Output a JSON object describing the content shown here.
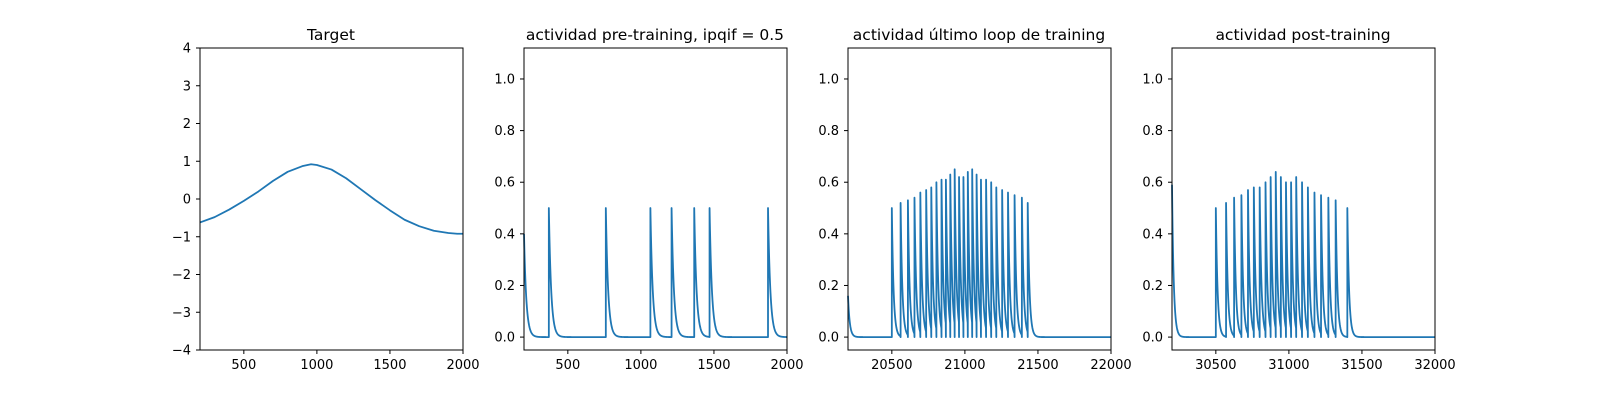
{
  "colors": {
    "series": "#1f77b4",
    "axes": "#000000",
    "background": "#ffffff"
  },
  "chart_data": [
    {
      "type": "line",
      "title": "Target",
      "xlabel": "",
      "ylabel": "",
      "xlim": [
        200,
        2000
      ],
      "ylim": [
        -4,
        4
      ],
      "xticks": [
        500,
        1000,
        1500,
        2000
      ],
      "yticks": [
        -4,
        -3,
        -2,
        -1,
        0,
        1,
        2,
        3,
        4
      ],
      "ytick_labels": [
        "−4",
        "−3",
        "−2",
        "−1",
        "0",
        "1",
        "2",
        "3",
        "4"
      ],
      "series": [
        {
          "name": "target",
          "x": [
            200,
            300,
            400,
            500,
            600,
            700,
            800,
            900,
            960,
            1000,
            1100,
            1200,
            1300,
            1400,
            1500,
            1600,
            1700,
            1800,
            1900,
            1960,
            2000
          ],
          "y": [
            -0.62,
            -0.48,
            -0.28,
            -0.05,
            0.2,
            0.48,
            0.72,
            0.87,
            0.92,
            0.9,
            0.78,
            0.55,
            0.26,
            -0.03,
            -0.3,
            -0.55,
            -0.72,
            -0.84,
            -0.9,
            -0.92,
            -0.92
          ]
        }
      ]
    },
    {
      "type": "line",
      "title": "actividad pre-training, ipqif = 0.5",
      "xlabel": "",
      "ylabel": "",
      "xlim": [
        200,
        2000
      ],
      "ylim": [
        -0.05,
        1.12
      ],
      "xticks": [
        500,
        1000,
        1500,
        2000
      ],
      "yticks": [
        0.0,
        0.2,
        0.4,
        0.6,
        0.8,
        1.0
      ],
      "ytick_labels": [
        "0.0",
        "0.2",
        "0.4",
        "0.6",
        "0.8",
        "1.0"
      ],
      "spikes": {
        "start_value": 0.4,
        "times": [
          370,
          760,
          1065,
          1210,
          1365,
          1470,
          1870
        ],
        "peaks": [
          0.5,
          0.5,
          0.5,
          0.5,
          0.5,
          0.5,
          0.5
        ],
        "decay": 16
      }
    },
    {
      "type": "line",
      "title": "actividad último loop de training",
      "xlabel": "",
      "ylabel": "",
      "xlim": [
        20200,
        22000
      ],
      "ylim": [
        -0.05,
        1.12
      ],
      "xticks": [
        20500,
        21000,
        21500,
        22000
      ],
      "yticks": [
        0.0,
        0.2,
        0.4,
        0.6,
        0.8,
        1.0
      ],
      "ytick_labels": [
        "0.0",
        "0.2",
        "0.4",
        "0.6",
        "0.8",
        "1.0"
      ],
      "spikes": {
        "start_value": 0.16,
        "times": [
          20500,
          20560,
          20610,
          20655,
          20695,
          20735,
          20770,
          20805,
          20840,
          20870,
          20900,
          20930,
          20960,
          20990,
          21020,
          21050,
          21080,
          21110,
          21145,
          21180,
          21215,
          21255,
          21295,
          21340,
          21390,
          21430
        ],
        "peaks": [
          0.5,
          0.52,
          0.53,
          0.54,
          0.56,
          0.57,
          0.58,
          0.6,
          0.61,
          0.61,
          0.63,
          0.65,
          0.62,
          0.62,
          0.64,
          0.65,
          0.63,
          0.61,
          0.61,
          0.6,
          0.58,
          0.57,
          0.56,
          0.55,
          0.54,
          0.52
        ],
        "decay": 12
      }
    },
    {
      "type": "line",
      "title": "actividad post-training",
      "xlabel": "",
      "ylabel": "",
      "xlim": [
        30200,
        32000
      ],
      "ylim": [
        -0.05,
        1.12
      ],
      "xticks": [
        30500,
        31000,
        31500,
        32000
      ],
      "yticks": [
        0.0,
        0.2,
        0.4,
        0.6,
        0.8,
        1.0
      ],
      "ytick_labels": [
        "0.0",
        "0.2",
        "0.4",
        "0.6",
        "0.8",
        "1.0"
      ],
      "spikes": {
        "start_value": 0.59,
        "times": [
          30500,
          30570,
          30625,
          30675,
          30720,
          30760,
          30800,
          30840,
          30875,
          30910,
          30945,
          30980,
          31015,
          31050,
          31090,
          31130,
          31175,
          31220,
          31270,
          31320,
          31400
        ],
        "peaks": [
          0.5,
          0.52,
          0.54,
          0.55,
          0.57,
          0.58,
          0.58,
          0.6,
          0.62,
          0.64,
          0.62,
          0.6,
          0.6,
          0.62,
          0.6,
          0.58,
          0.56,
          0.55,
          0.54,
          0.53,
          0.5
        ],
        "decay": 12
      }
    }
  ]
}
